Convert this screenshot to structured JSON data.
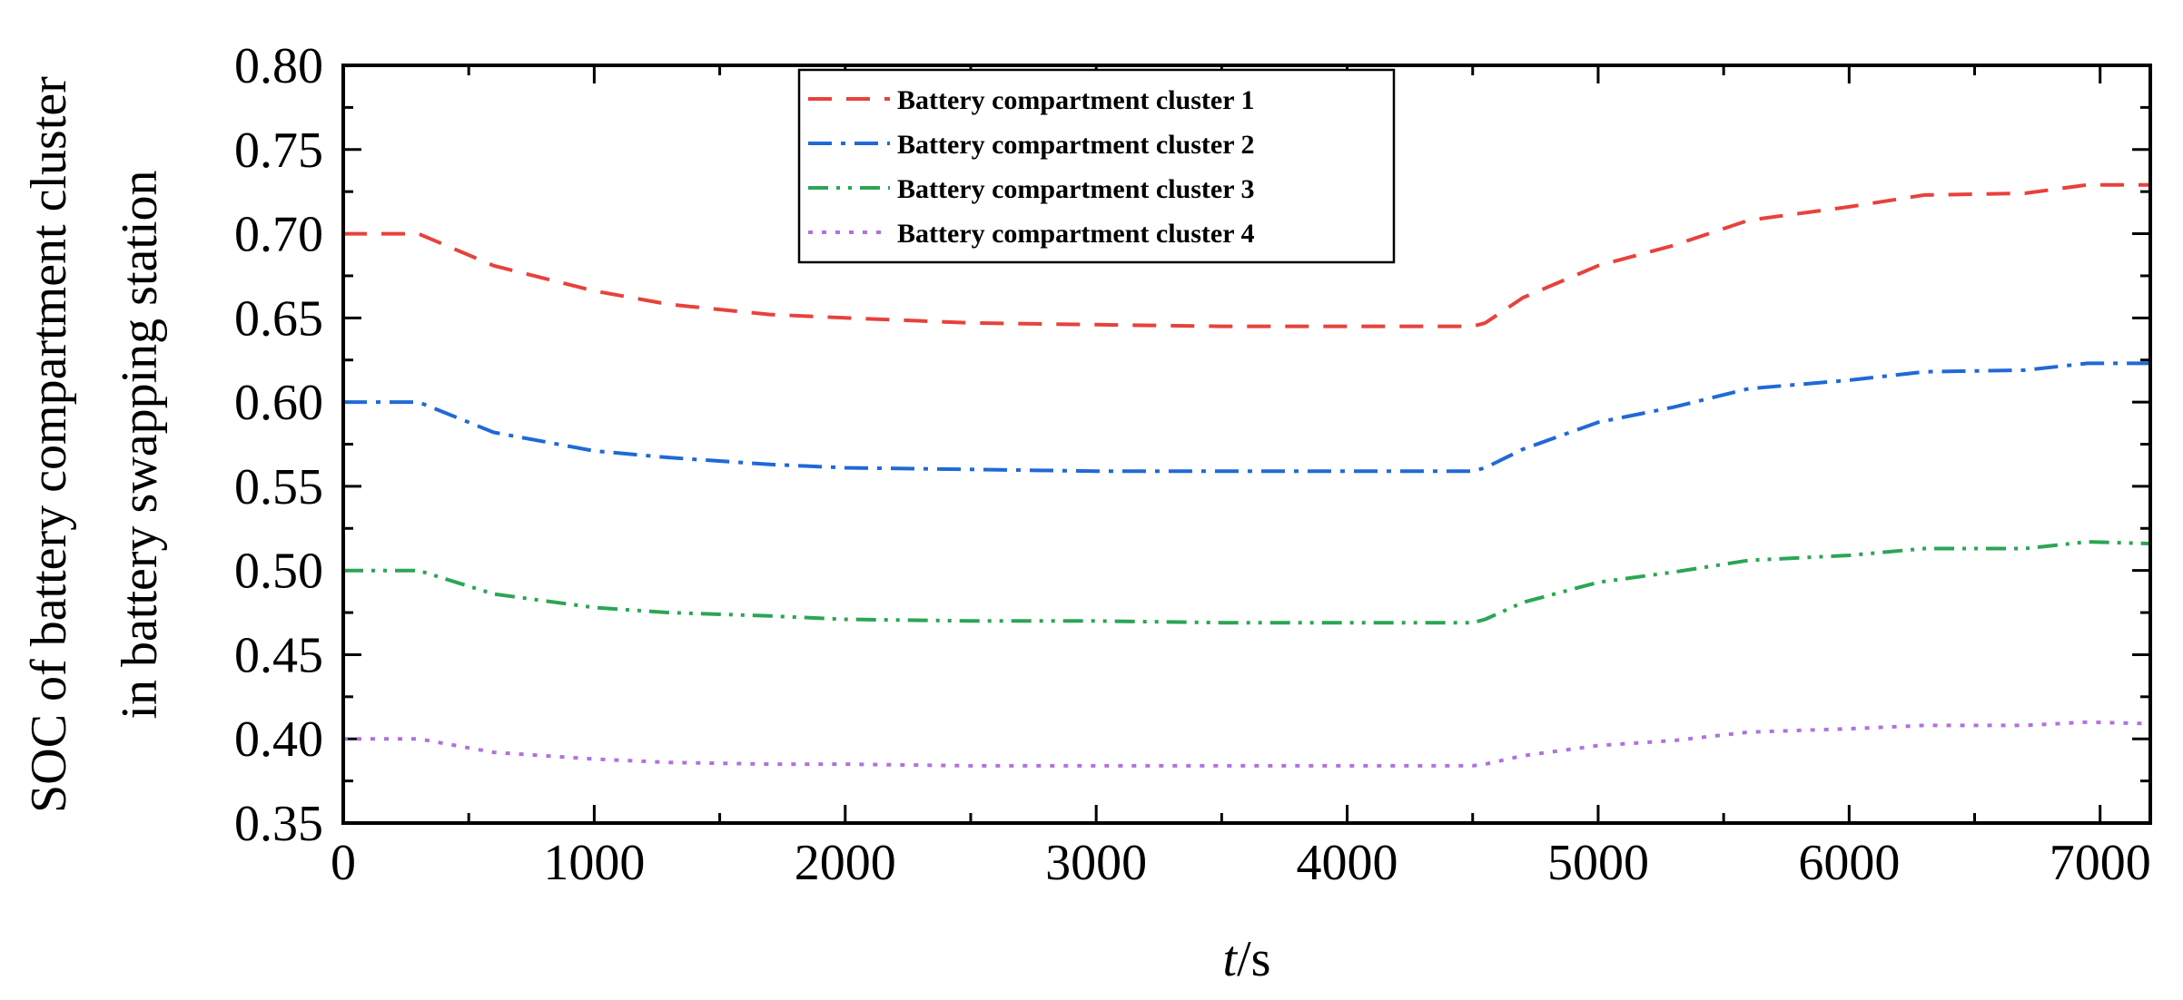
{
  "chart_data": {
    "type": "line",
    "title": "",
    "xlabel_italic": "t",
    "xlabel_rest": "/s",
    "ylabel_lines": [
      "SOC of battery compartment cluster",
      "in battery swapping station"
    ],
    "xlim": [
      0,
      7200
    ],
    "ylim": [
      0.35,
      0.8
    ],
    "xticks": [
      0,
      1000,
      2000,
      3000,
      4000,
      5000,
      6000,
      7000
    ],
    "xtick_labels": [
      "0",
      "1000",
      "2000",
      "3000",
      "4000",
      "5000",
      "6000",
      "7000"
    ],
    "yticks": [
      0.35,
      0.4,
      0.45,
      0.5,
      0.55,
      0.6,
      0.65,
      0.7,
      0.75,
      0.8
    ],
    "ytick_labels": [
      "0.35",
      "0.40",
      "0.45",
      "0.50",
      "0.55",
      "0.60",
      "0.65",
      "0.70",
      "0.75",
      "0.80"
    ],
    "grid": false,
    "legend_position": "top-center",
    "series": [
      {
        "name": "Battery compartment cluster 1",
        "color": "#e8413c",
        "style": "dashed",
        "x": [
          0,
          300,
          600,
          1000,
          1300,
          1700,
          2000,
          2500,
          3000,
          3500,
          4000,
          4500,
          4550,
          4700,
          5000,
          5300,
          5600,
          6000,
          6300,
          6700,
          6950,
          7200
        ],
        "y": [
          0.7,
          0.7,
          0.681,
          0.666,
          0.658,
          0.652,
          0.65,
          0.647,
          0.646,
          0.645,
          0.645,
          0.645,
          0.647,
          0.662,
          0.681,
          0.693,
          0.708,
          0.716,
          0.723,
          0.724,
          0.729,
          0.729
        ]
      },
      {
        "name": "Battery compartment cluster 2",
        "color": "#2069d6",
        "style": "dashdot",
        "x": [
          0,
          300,
          600,
          1000,
          1300,
          1700,
          2000,
          2500,
          3000,
          3500,
          4000,
          4500,
          4550,
          4700,
          5000,
          5300,
          5600,
          6000,
          6300,
          6700,
          6950,
          7200
        ],
        "y": [
          0.6,
          0.6,
          0.582,
          0.571,
          0.567,
          0.563,
          0.561,
          0.56,
          0.559,
          0.559,
          0.559,
          0.559,
          0.561,
          0.572,
          0.588,
          0.597,
          0.608,
          0.613,
          0.618,
          0.619,
          0.623,
          0.623
        ]
      },
      {
        "name": "Battery compartment cluster 3",
        "color": "#2aa654",
        "style": "dashdotdot",
        "x": [
          0,
          300,
          600,
          1000,
          1300,
          1700,
          2000,
          2500,
          3000,
          3500,
          4000,
          4500,
          4550,
          4700,
          5000,
          5300,
          5600,
          6000,
          6300,
          6700,
          6950,
          7200
        ],
        "y": [
          0.5,
          0.5,
          0.486,
          0.478,
          0.475,
          0.473,
          0.471,
          0.47,
          0.47,
          0.469,
          0.469,
          0.469,
          0.471,
          0.481,
          0.493,
          0.499,
          0.506,
          0.509,
          0.513,
          0.513,
          0.517,
          0.516
        ]
      },
      {
        "name": "Battery compartment cluster 4",
        "color": "#b072dc",
        "style": "dotted",
        "x": [
          0,
          300,
          600,
          1000,
          1300,
          1700,
          2000,
          2500,
          3000,
          3500,
          4000,
          4500,
          4550,
          4700,
          5000,
          5300,
          5600,
          6000,
          6300,
          6700,
          6950,
          7200
        ],
        "y": [
          0.4,
          0.4,
          0.392,
          0.388,
          0.386,
          0.385,
          0.385,
          0.384,
          0.384,
          0.384,
          0.384,
          0.384,
          0.385,
          0.39,
          0.396,
          0.399,
          0.404,
          0.406,
          0.408,
          0.408,
          0.41,
          0.409
        ]
      }
    ]
  }
}
